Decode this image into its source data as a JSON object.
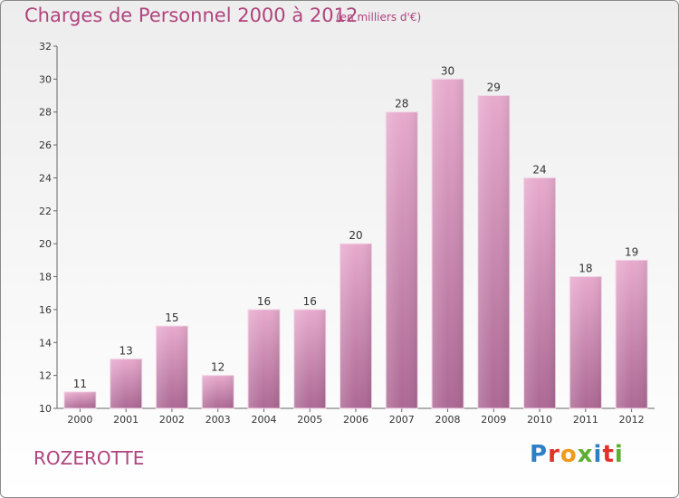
{
  "header": {
    "title": "Charges de Personnel 2000 à 2012",
    "subtitle": "(en milliers d'€)"
  },
  "footer": {
    "commune": "ROZEROTTE",
    "logo": "Proxiti"
  },
  "colors": {
    "bar": "#c888b0",
    "text": "#b0447e"
  },
  "chart_data": {
    "type": "bar",
    "categories": [
      "2000",
      "2001",
      "2002",
      "2003",
      "2004",
      "2005",
      "2006",
      "2007",
      "2008",
      "2009",
      "2010",
      "2011",
      "2012"
    ],
    "values": [
      11,
      13,
      15,
      12,
      16,
      16,
      20,
      28,
      30,
      29,
      24,
      18,
      19
    ],
    "title": "Charges de Personnel 2000 à 2012",
    "ylim": [
      10,
      32
    ],
    "yticks": [
      10,
      12,
      14,
      16,
      18,
      20,
      22,
      24,
      26,
      28,
      30,
      32
    ],
    "grid": false,
    "data_labels": true
  }
}
